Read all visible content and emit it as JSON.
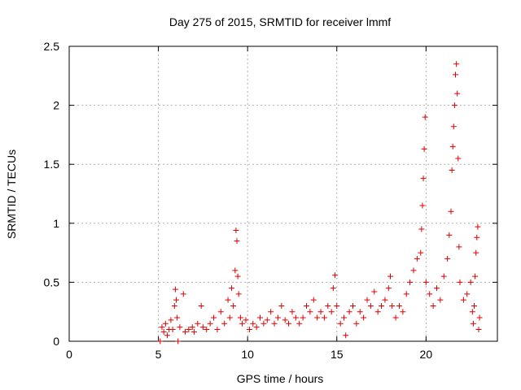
{
  "chart_data": {
    "type": "scatter",
    "title": "Day 275 of 2015, SRMTID for receiver lmmf",
    "xlabel": "GPS time / hours",
    "ylabel": "SRMTID / TECUs",
    "xlim": [
      0,
      24
    ],
    "ylim": [
      0,
      2.5
    ],
    "x_ticks": [
      0,
      5,
      10,
      15,
      20
    ],
    "x_tick_labels": [
      "0",
      "5",
      "10",
      "15",
      "20"
    ],
    "y_ticks": [
      0,
      0.5,
      1,
      1.5,
      2,
      2.5
    ],
    "y_tick_labels": [
      "0",
      "0.5",
      "1",
      "1.5",
      "2",
      "2.5"
    ],
    "grid": true,
    "marker": "+",
    "color": "#e00000",
    "series": [
      {
        "name": "SRMTID",
        "points": [
          [
            5.1,
            0.0
          ],
          [
            5.2,
            0.12
          ],
          [
            5.3,
            0.08
          ],
          [
            5.4,
            0.15
          ],
          [
            5.5,
            0.05
          ],
          [
            5.6,
            0.1
          ],
          [
            5.7,
            0.18
          ],
          [
            5.8,
            0.1
          ],
          [
            5.9,
            0.3
          ],
          [
            5.95,
            0.44
          ],
          [
            6.0,
            0.35
          ],
          [
            6.05,
            0.2
          ],
          [
            6.1,
            0.0
          ],
          [
            6.2,
            0.12
          ],
          [
            6.4,
            0.4
          ],
          [
            6.5,
            0.08
          ],
          [
            6.7,
            0.1
          ],
          [
            6.9,
            0.12
          ],
          [
            7.0,
            0.08
          ],
          [
            7.2,
            0.15
          ],
          [
            7.4,
            0.3
          ],
          [
            7.5,
            0.12
          ],
          [
            7.7,
            0.1
          ],
          [
            7.9,
            0.15
          ],
          [
            8.1,
            0.2
          ],
          [
            8.3,
            0.1
          ],
          [
            8.5,
            0.25
          ],
          [
            8.7,
            0.15
          ],
          [
            8.9,
            0.35
          ],
          [
            9.0,
            0.2
          ],
          [
            9.1,
            0.45
          ],
          [
            9.2,
            0.3
          ],
          [
            9.3,
            0.6
          ],
          [
            9.35,
            0.94
          ],
          [
            9.4,
            0.85
          ],
          [
            9.45,
            0.55
          ],
          [
            9.5,
            0.4
          ],
          [
            9.6,
            0.2
          ],
          [
            9.7,
            0.15
          ],
          [
            9.9,
            0.18
          ],
          [
            10.1,
            0.1
          ],
          [
            10.3,
            0.15
          ],
          [
            10.5,
            0.12
          ],
          [
            10.7,
            0.2
          ],
          [
            10.9,
            0.15
          ],
          [
            11.1,
            0.18
          ],
          [
            11.3,
            0.25
          ],
          [
            11.5,
            0.15
          ],
          [
            11.7,
            0.2
          ],
          [
            11.9,
            0.3
          ],
          [
            12.1,
            0.18
          ],
          [
            12.3,
            0.15
          ],
          [
            12.5,
            0.25
          ],
          [
            12.7,
            0.2
          ],
          [
            12.9,
            0.15
          ],
          [
            13.1,
            0.2
          ],
          [
            13.3,
            0.3
          ],
          [
            13.5,
            0.25
          ],
          [
            13.7,
            0.35
          ],
          [
            13.9,
            0.2
          ],
          [
            14.1,
            0.25
          ],
          [
            14.3,
            0.2
          ],
          [
            14.5,
            0.3
          ],
          [
            14.7,
            0.25
          ],
          [
            14.8,
            0.45
          ],
          [
            14.9,
            0.56
          ],
          [
            15.0,
            0.3
          ],
          [
            15.2,
            0.15
          ],
          [
            15.4,
            0.2
          ],
          [
            15.5,
            0.05
          ],
          [
            15.7,
            0.25
          ],
          [
            15.9,
            0.3
          ],
          [
            16.1,
            0.15
          ],
          [
            16.3,
            0.25
          ],
          [
            16.5,
            0.2
          ],
          [
            16.7,
            0.35
          ],
          [
            16.9,
            0.3
          ],
          [
            17.1,
            0.42
          ],
          [
            17.3,
            0.25
          ],
          [
            17.5,
            0.3
          ],
          [
            17.7,
            0.35
          ],
          [
            17.9,
            0.45
          ],
          [
            18.0,
            0.55
          ],
          [
            18.1,
            0.3
          ],
          [
            18.3,
            0.2
          ],
          [
            18.5,
            0.3
          ],
          [
            18.7,
            0.25
          ],
          [
            18.9,
            0.4
          ],
          [
            19.1,
            0.5
          ],
          [
            19.3,
            0.6
          ],
          [
            19.5,
            0.7
          ],
          [
            19.7,
            0.75
          ],
          [
            19.75,
            0.95
          ],
          [
            19.8,
            1.15
          ],
          [
            19.85,
            1.38
          ],
          [
            19.9,
            1.63
          ],
          [
            19.95,
            1.9
          ],
          [
            20.0,
            0.5
          ],
          [
            20.2,
            0.4
          ],
          [
            20.4,
            0.3
          ],
          [
            20.6,
            0.45
          ],
          [
            20.8,
            0.35
          ],
          [
            21.0,
            0.55
          ],
          [
            21.2,
            0.7
          ],
          [
            21.3,
            0.9
          ],
          [
            21.4,
            1.1
          ],
          [
            21.45,
            1.45
          ],
          [
            21.5,
            1.65
          ],
          [
            21.55,
            1.82
          ],
          [
            21.6,
            2.0
          ],
          [
            21.65,
            2.26
          ],
          [
            21.7,
            2.35
          ],
          [
            21.75,
            2.1
          ],
          [
            21.8,
            1.55
          ],
          [
            21.85,
            0.8
          ],
          [
            21.9,
            0.5
          ],
          [
            22.1,
            0.35
          ],
          [
            22.3,
            0.4
          ],
          [
            22.5,
            0.5
          ],
          [
            22.6,
            0.25
          ],
          [
            22.65,
            0.15
          ],
          [
            22.7,
            0.3
          ],
          [
            22.75,
            0.55
          ],
          [
            22.8,
            0.75
          ],
          [
            22.85,
            0.88
          ],
          [
            22.9,
            0.97
          ],
          [
            22.95,
            0.1
          ],
          [
            23.0,
            0.2
          ]
        ]
      }
    ]
  }
}
